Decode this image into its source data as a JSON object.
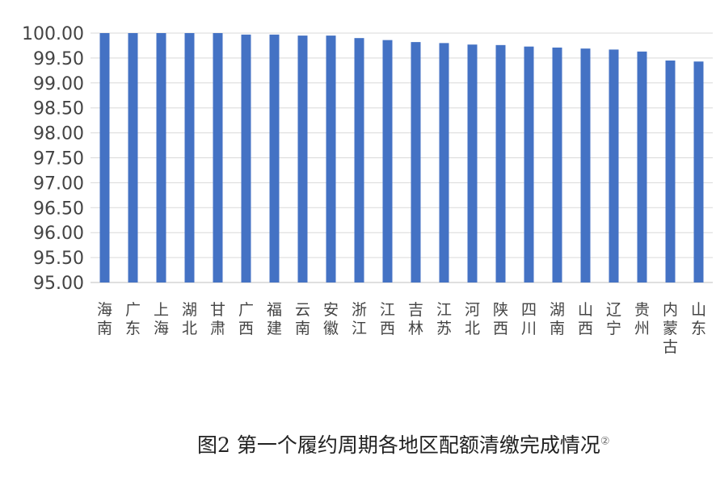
{
  "chart_data": {
    "type": "bar",
    "categories": [
      "海南",
      "广东",
      "上海",
      "湖北",
      "甘肃",
      "广西",
      "福建",
      "云南",
      "安徽",
      "浙江",
      "江西",
      "吉林",
      "江苏",
      "河北",
      "陕西",
      "四川",
      "湖南",
      "山西",
      "辽宁",
      "贵州",
      "内蒙古",
      "山东"
    ],
    "values": [
      100.0,
      100.0,
      100.0,
      100.0,
      100.0,
      99.97,
      99.97,
      99.95,
      99.95,
      99.9,
      99.86,
      99.82,
      99.8,
      99.77,
      99.76,
      99.73,
      99.71,
      99.69,
      99.67,
      99.63,
      99.45,
      99.43
    ],
    "ylim": [
      95.0,
      100.0
    ],
    "yticks": [
      "100.00",
      "99.50",
      "99.00",
      "98.50",
      "98.00",
      "97.50",
      "97.00",
      "96.50",
      "96.00",
      "95.50",
      "95.00"
    ],
    "grid": true,
    "bar_color": "#4472c4",
    "title": "",
    "xlabel": "",
    "ylabel": ""
  },
  "caption": {
    "text": "图2 第一个履约周期各地区配额清缴完成情况",
    "mark": "②"
  }
}
